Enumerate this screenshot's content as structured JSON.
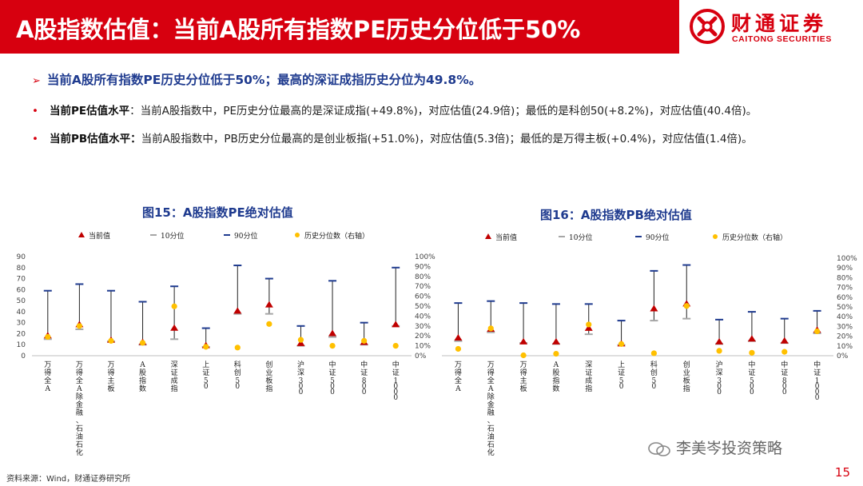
{
  "header": {
    "title": "A股指数估值：当前A股所有指数PE历史分位低于50%",
    "logo_cn": "财通证券",
    "logo_en": "CAITONG SECURITIES"
  },
  "summary": {
    "headline": "当前A股所有指数PE历史分位低于50%；最高的深证成指历史分位为49.8%。",
    "bullets": [
      {
        "label": "当前PE估值水平",
        "text": "：当前A股指数中，PE历史分位最高的是深证成指(+49.8%)，对应估值(24.9倍)；最低的是科创50(+8.2%)，对应估值(40.4倍)。"
      },
      {
        "label": "当前PB估值水平：",
        "text": "当前A股指数中，PB历史分位最高的是创业板指(+51.0%)，对应估值(5.3倍)；最低的是万得主板(+0.4%)，对应估值(1.4倍)。"
      }
    ]
  },
  "chart_data": [
    {
      "type": "scatter",
      "title": "图15：A股指数PE绝对估值",
      "legend": [
        "当前值",
        "10分位",
        "90分位",
        "历史分位数（右轴）"
      ],
      "legend_position": "top",
      "categories": [
        "万得全A",
        "万得全A(除金融、石油石化)",
        "万得主板",
        "A股指数",
        "深证成指",
        "上证50",
        "科创50",
        "创业板指",
        "沪深300",
        "中证500",
        "中证800",
        "中证1000"
      ],
      "left_axis": {
        "min": 0,
        "max": 90,
        "ticks": [
          "0",
          "10",
          "20",
          "30",
          "40",
          "50",
          "60",
          "70",
          "80",
          "90"
        ]
      },
      "right_axis": {
        "min": 0,
        "max": 1,
        "ticks": [
          "0%",
          "10%",
          "20%",
          "30%",
          "40%",
          "50%",
          "60%",
          "70%",
          "80%",
          "90%",
          "100%"
        ]
      },
      "series": [
        {
          "name": "当前值",
          "marker": "triangle",
          "color": "#c00000",
          "values": [
            18,
            28,
            14,
            12,
            24.9,
            9,
            40.4,
            46,
            11,
            20,
            12,
            28
          ]
        },
        {
          "name": "10分位",
          "marker": "dash",
          "color": "#a6a6a6",
          "values": [
            15,
            24,
            13,
            10,
            15,
            8,
            38,
            38,
            9,
            17,
            10,
            27
          ]
        },
        {
          "name": "90分位",
          "marker": "dash",
          "color": "#1f3b8f",
          "values": [
            59,
            65,
            59,
            49,
            63,
            25,
            82,
            70,
            27,
            68,
            30,
            80
          ]
        },
        {
          "name": "历史分位数（右轴）",
          "marker": "circle",
          "color": "#ffc000",
          "axis": "right",
          "values": [
            0.19,
            0.3,
            0.15,
            0.13,
            0.498,
            0.09,
            0.082,
            0.32,
            0.16,
            0.1,
            0.15,
            0.1
          ]
        }
      ]
    },
    {
      "type": "scatter",
      "title": "图16：A股指数PB绝对估值",
      "legend": [
        "当前值",
        "10分位",
        "90分位",
        "历史分位数（右轴）"
      ],
      "legend_position": "top",
      "categories": [
        "万得全A",
        "万得全A(除金融、石油石化)",
        "万得主板",
        "A股指数",
        "深证成指",
        "上证50",
        "科创50",
        "创业板指",
        "沪深300",
        "中证500",
        "中证800",
        "中证1000"
      ],
      "left_axis": {
        "min": 0,
        "max": 10,
        "ticks": []
      },
      "right_axis": {
        "min": 0,
        "max": 1,
        "ticks": [
          "0%",
          "10%",
          "20%",
          "30%",
          "40%",
          "50%",
          "60%",
          "70%",
          "80%",
          "90%",
          "100%"
        ]
      },
      "series": [
        {
          "name": "当前值",
          "marker": "triangle",
          "color": "#c00000",
          "values": [
            1.8,
            2.7,
            1.4,
            1.4,
            2.8,
            1.2,
            4.8,
            5.3,
            1.4,
            1.7,
            1.5,
            2.6
          ]
        },
        {
          "name": "10分位",
          "marker": "dash",
          "color": "#a6a6a6",
          "values": [
            1.5,
            2.4,
            1.3,
            1.2,
            2.2,
            1.1,
            3.6,
            3.8,
            1.2,
            1.5,
            1.3,
            2.3
          ]
        },
        {
          "name": "90分位",
          "marker": "dash",
          "color": "#1f3b8f",
          "values": [
            5.4,
            5.6,
            5.4,
            5.3,
            5.3,
            3.6,
            8.7,
            9.3,
            3.7,
            4.5,
            3.8,
            4.6
          ]
        },
        {
          "name": "历史分位数（右轴）",
          "marker": "circle",
          "color": "#ffc000",
          "axis": "right",
          "values": [
            0.07,
            0.28,
            0.004,
            0.02,
            0.32,
            0.12,
            0.025,
            0.51,
            0.05,
            0.03,
            0.04,
            0.25
          ]
        }
      ]
    }
  ],
  "footer": {
    "source": "资料来源：Wind，财通证券研究所",
    "watermark": "李美岑投资策略",
    "page": "15"
  },
  "colors": {
    "brand_red": "#d7000f",
    "headline_blue": "#1f3b8f"
  }
}
